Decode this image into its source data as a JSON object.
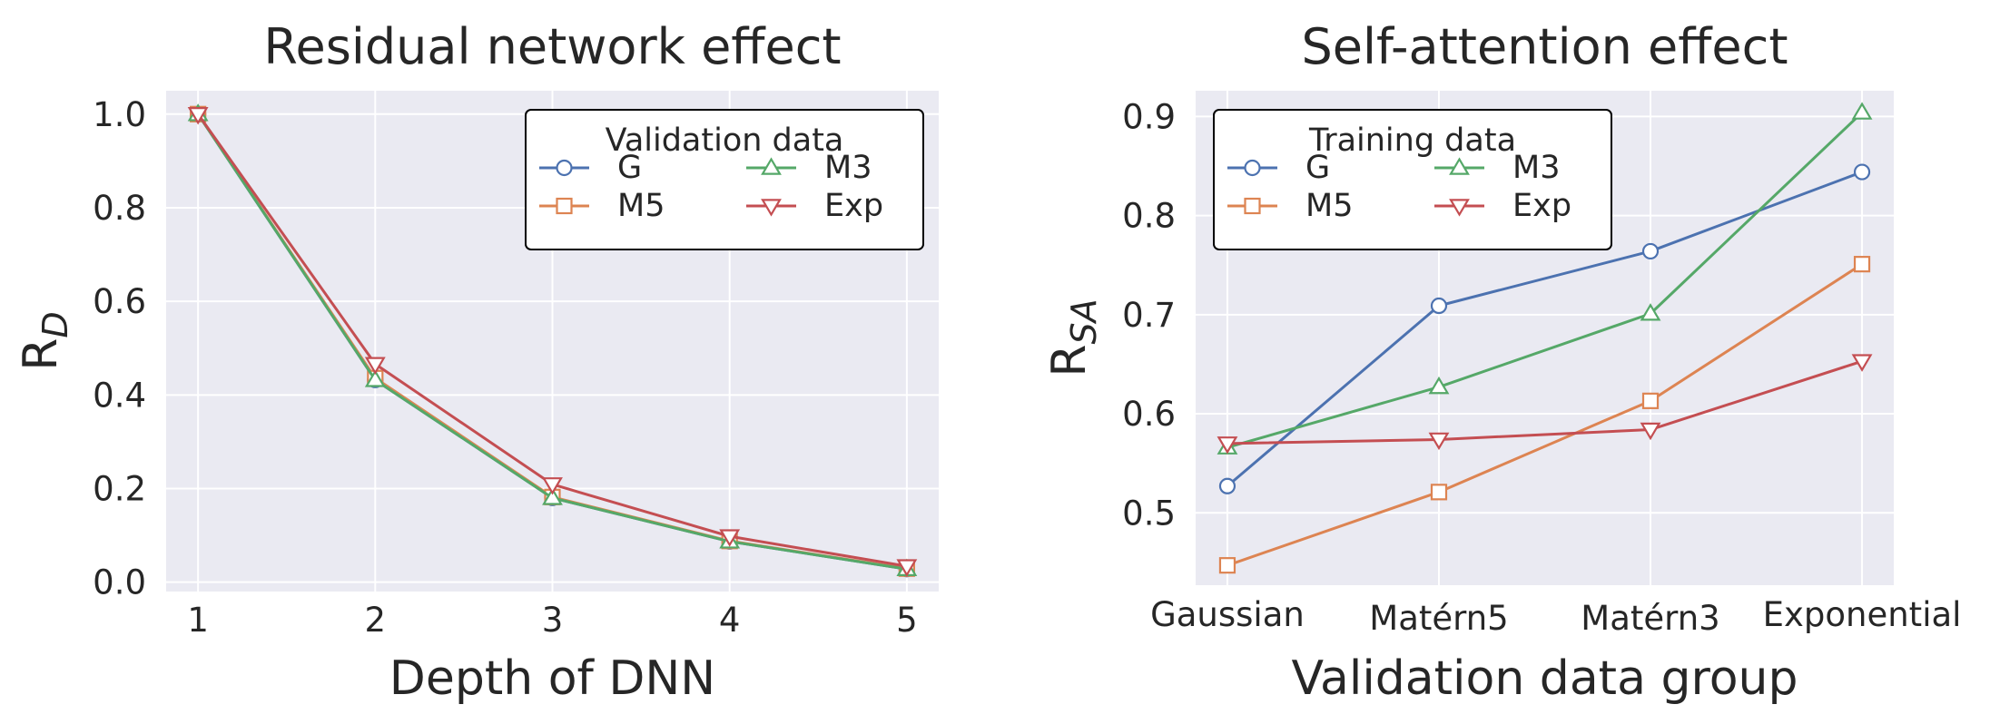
{
  "colors": {
    "G": "#4c72b0",
    "M5": "#dd8452",
    "M3": "#55a868",
    "Exp": "#c44e52"
  },
  "chart_data": [
    {
      "type": "line",
      "title": "Residual network effect",
      "xlabel": "Depth of DNN",
      "ylabel": "R",
      "ylabel_sub": "D",
      "x": [
        1,
        2,
        3,
        4,
        5
      ],
      "x_tick_labels": [
        "1",
        "2",
        "3",
        "4",
        "5"
      ],
      "xlim": [
        0.82,
        5.18
      ],
      "ylim": [
        -0.02,
        1.05
      ],
      "y_ticks": [
        0.0,
        0.2,
        0.4,
        0.6,
        0.8,
        1.0
      ],
      "y_tick_labels": [
        "0.0",
        "0.2",
        "0.4",
        "0.6",
        "0.8",
        "1.0"
      ],
      "grid": true,
      "legend": {
        "title": "Validation data",
        "placement": "top-right",
        "columns": 2
      },
      "series": [
        {
          "name": "G",
          "marker": "circle",
          "values": [
            1.0,
            0.432,
            0.18,
            0.087,
            0.028
          ]
        },
        {
          "name": "M5",
          "marker": "square",
          "values": [
            1.0,
            0.436,
            0.182,
            0.088,
            0.029
          ]
        },
        {
          "name": "M3",
          "marker": "triangle-up",
          "values": [
            1.0,
            0.432,
            0.18,
            0.087,
            0.028
          ]
        },
        {
          "name": "Exp",
          "marker": "triangle-down",
          "values": [
            1.0,
            0.466,
            0.209,
            0.098,
            0.034
          ]
        }
      ]
    },
    {
      "type": "line",
      "title": "Self-attention effect",
      "xlabel": "Validation data group",
      "ylabel": "R",
      "ylabel_sub": "SA",
      "x": [
        0,
        1,
        2,
        3
      ],
      "x_tick_labels": [
        "Gaussian",
        "Matérn5",
        "Matérn3",
        "Exponential"
      ],
      "xlim": [
        -0.15,
        3.15
      ],
      "ylim": [
        0.427,
        0.926
      ],
      "y_ticks": [
        0.5,
        0.6,
        0.7,
        0.8,
        0.9
      ],
      "y_tick_labels": [
        "0.5",
        "0.6",
        "0.7",
        "0.8",
        "0.9"
      ],
      "grid": true,
      "legend": {
        "title": "Training data",
        "placement": "top-left",
        "columns": 2
      },
      "series": [
        {
          "name": "G",
          "marker": "circle",
          "values": [
            0.527,
            0.709,
            0.764,
            0.844
          ]
        },
        {
          "name": "M5",
          "marker": "square",
          "values": [
            0.447,
            0.521,
            0.613,
            0.751
          ]
        },
        {
          "name": "M3",
          "marker": "triangle-up",
          "values": [
            0.566,
            0.627,
            0.701,
            0.904
          ]
        },
        {
          "name": "Exp",
          "marker": "triangle-down",
          "values": [
            0.57,
            0.574,
            0.584,
            0.653
          ]
        }
      ]
    }
  ]
}
